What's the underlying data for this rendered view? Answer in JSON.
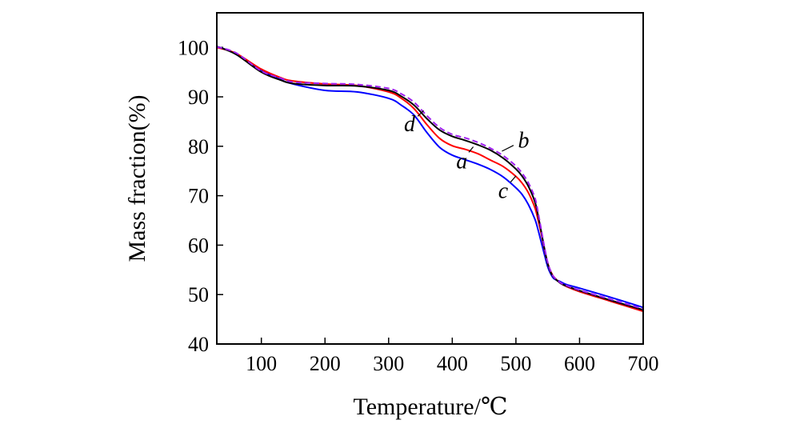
{
  "chart_data": {
    "type": "line",
    "title": "",
    "xlabel": "Temperature/℃",
    "ylabel": "Mass fraction(%)",
    "xlim": [
      30,
      700
    ],
    "ylim": [
      40,
      107
    ],
    "xticks": [
      100,
      200,
      300,
      400,
      500,
      600,
      700
    ],
    "yticks": [
      40,
      50,
      60,
      70,
      80,
      90,
      100
    ],
    "grid": false,
    "legend": "none",
    "series": [
      {
        "name": "a",
        "color": "#ff0000",
        "dash": "solid",
        "x": [
          30,
          60,
          100,
          130,
          150,
          200,
          250,
          300,
          320,
          340,
          360,
          380,
          400,
          420,
          440,
          460,
          480,
          500,
          510,
          520,
          530,
          535,
          540,
          545,
          550,
          555,
          560,
          570,
          580,
          600,
          650,
          700
        ],
        "y": [
          100.0,
          98.8,
          95.6,
          93.9,
          93.2,
          92.6,
          92.3,
          91.0,
          89.7,
          87.6,
          84.4,
          81.6,
          80.1,
          79.4,
          78.5,
          77.2,
          75.9,
          73.9,
          72.5,
          70.5,
          67.5,
          65.0,
          62.2,
          59.0,
          56.3,
          54.6,
          53.5,
          52.3,
          51.6,
          50.6,
          48.6,
          46.6
        ]
      },
      {
        "name": "b",
        "color": "#a020f0",
        "dash": "dashed",
        "x": [
          30,
          60,
          100,
          130,
          150,
          200,
          250,
          300,
          320,
          340,
          360,
          380,
          400,
          420,
          440,
          460,
          480,
          500,
          510,
          520,
          530,
          535,
          540,
          545,
          550,
          555,
          560,
          570,
          580,
          600,
          650,
          700
        ],
        "y": [
          100.1,
          98.9,
          95.2,
          93.8,
          93.0,
          92.7,
          92.5,
          91.7,
          90.6,
          88.9,
          86.2,
          83.8,
          82.4,
          81.7,
          80.8,
          79.6,
          78.1,
          76.0,
          74.5,
          72.5,
          69.5,
          66.5,
          63.0,
          59.5,
          56.5,
          54.6,
          53.5,
          52.4,
          51.8,
          50.9,
          49.0,
          47.1
        ]
      },
      {
        "name": "c",
        "color": "#0000ff",
        "dash": "solid",
        "x": [
          30,
          60,
          100,
          130,
          150,
          200,
          250,
          300,
          320,
          340,
          360,
          380,
          400,
          420,
          440,
          460,
          480,
          500,
          510,
          520,
          530,
          535,
          540,
          545,
          550,
          555,
          560,
          570,
          580,
          600,
          650,
          700
        ],
        "y": [
          100.2,
          98.7,
          95.4,
          93.5,
          92.6,
          91.3,
          91.0,
          89.7,
          88.3,
          86.3,
          82.8,
          79.8,
          78.2,
          77.3,
          76.4,
          75.3,
          73.8,
          71.6,
          70.2,
          68.1,
          65.2,
          63.0,
          60.5,
          58.0,
          55.6,
          54.1,
          53.2,
          52.6,
          52.0,
          51.3,
          49.4,
          47.4
        ]
      },
      {
        "name": "d",
        "color": "#000000",
        "dash": "solid",
        "x": [
          30,
          60,
          100,
          130,
          150,
          200,
          250,
          300,
          320,
          340,
          360,
          380,
          400,
          420,
          440,
          460,
          480,
          500,
          510,
          520,
          530,
          535,
          540,
          545,
          550,
          555,
          560,
          570,
          580,
          600,
          650,
          700
        ],
        "y": [
          100.2,
          98.6,
          95.0,
          93.4,
          92.7,
          92.3,
          92.2,
          91.3,
          90.1,
          88.3,
          85.6,
          83.3,
          82.0,
          81.2,
          80.3,
          79.2,
          77.6,
          75.4,
          73.9,
          71.8,
          68.7,
          65.9,
          62.6,
          59.2,
          56.2,
          54.4,
          53.4,
          52.3,
          51.7,
          50.8,
          48.8,
          46.9
        ]
      }
    ],
    "annotations": [
      {
        "text": "d",
        "x": 355,
        "y": 87.2,
        "label_x": 333,
        "label_y": 84.5
      },
      {
        "text": "b",
        "x": 478,
        "y": 79.0,
        "label_x": 512,
        "label_y": 81.2
      },
      {
        "text": "a",
        "x": 433,
        "y": 79.9,
        "label_x": 415,
        "label_y": 77.0
      },
      {
        "text": "c",
        "x": 500,
        "y": 74.0,
        "label_x": 480,
        "label_y": 71.0
      }
    ]
  }
}
